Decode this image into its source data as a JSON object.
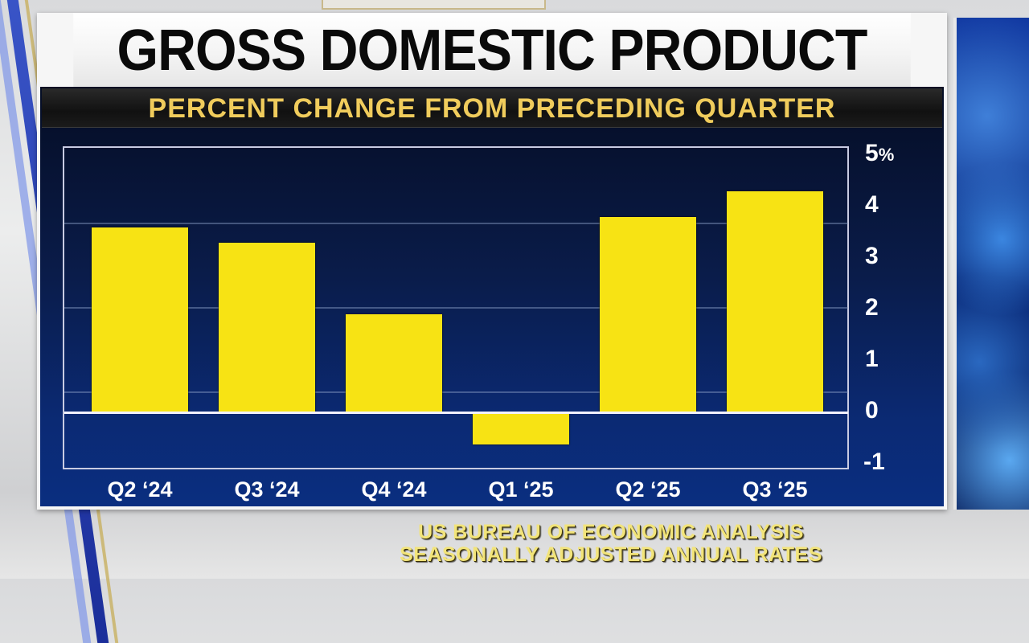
{
  "graphic": {
    "title": "GROSS DOMESTIC PRODUCT",
    "subtitle": "PERCENT CHANGE FROM PRECEDING QUARTER",
    "source_line_1": "US BUREAU OF ECONOMIC ANALYSIS",
    "source_line_2": "SEASONALLY ADJUSTED ANNUAL RATES",
    "colors": {
      "bar": "#f7e314",
      "subtitle_text": "#f0cc5c",
      "chart_background": "#0a1c4a",
      "title_text": "#0a0a0a"
    }
  },
  "y_axis": {
    "ticks": [
      {
        "label": "5",
        "suffix": "%",
        "value": 5
      },
      {
        "label": "4",
        "suffix": "",
        "value": 4
      },
      {
        "label": "3",
        "suffix": "",
        "value": 3
      },
      {
        "label": "2",
        "suffix": "",
        "value": 2
      },
      {
        "label": "1",
        "suffix": "",
        "value": 1
      },
      {
        "label": "0",
        "suffix": "",
        "value": 0
      },
      {
        "label": "-1",
        "suffix": "",
        "value": -1
      }
    ]
  },
  "x_axis": {
    "labels": [
      "Q2 ‘24",
      "Q3 ‘24",
      "Q4 ‘24",
      "Q1 ‘25",
      "Q2 ‘25",
      "Q3 ‘25"
    ]
  },
  "chart_data": {
    "type": "bar",
    "title": "GROSS DOMESTIC PRODUCT",
    "subtitle": "PERCENT CHANGE FROM PRECEDING QUARTER",
    "categories": [
      "Q2 '24",
      "Q3 '24",
      "Q4 '24",
      "Q1 '25",
      "Q2 '25",
      "Q3 '25"
    ],
    "values": [
      3.6,
      3.3,
      1.9,
      -0.6,
      3.8,
      4.3
    ],
    "xlabel": "",
    "ylabel": "Percent",
    "ylim": [
      -1,
      5
    ],
    "yticks": [
      -1,
      0,
      1,
      2,
      3,
      4,
      5
    ],
    "ytick_labels": [
      "-1",
      "0",
      "1",
      "2",
      "3",
      "4",
      "5%"
    ],
    "y_axis_position": "right",
    "grid": true,
    "legend": null,
    "source": "US BUREAU OF ECONOMIC ANALYSIS / SEASONALLY ADJUSTED ANNUAL RATES"
  }
}
